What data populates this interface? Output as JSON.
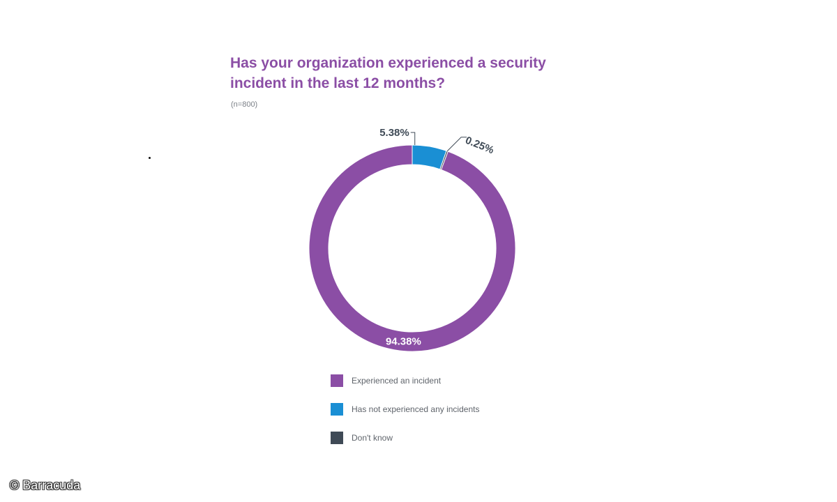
{
  "chart_data": {
    "type": "pie",
    "style": "donut",
    "title": "Has your organization experienced a security incident in the last 12 months?",
    "subtitle": "(n=800)",
    "slices": [
      {
        "label": "Experienced an incident",
        "value": 94.38,
        "display": "94.38%",
        "color": "#8b4ea5"
      },
      {
        "label": "Has not experienced any incidents",
        "value": 5.38,
        "display": "5.38%",
        "color": "#1a8fd4"
      },
      {
        "label": "Don't know",
        "value": 0.25,
        "display": "0.25%",
        "color": "#3f4a56"
      }
    ],
    "legend_position": "bottom"
  },
  "colors": {
    "title": "#8b4ea5",
    "label_text": "#3f4a56",
    "inner_label": "#ffffff"
  },
  "watermark": "© Barracuda"
}
